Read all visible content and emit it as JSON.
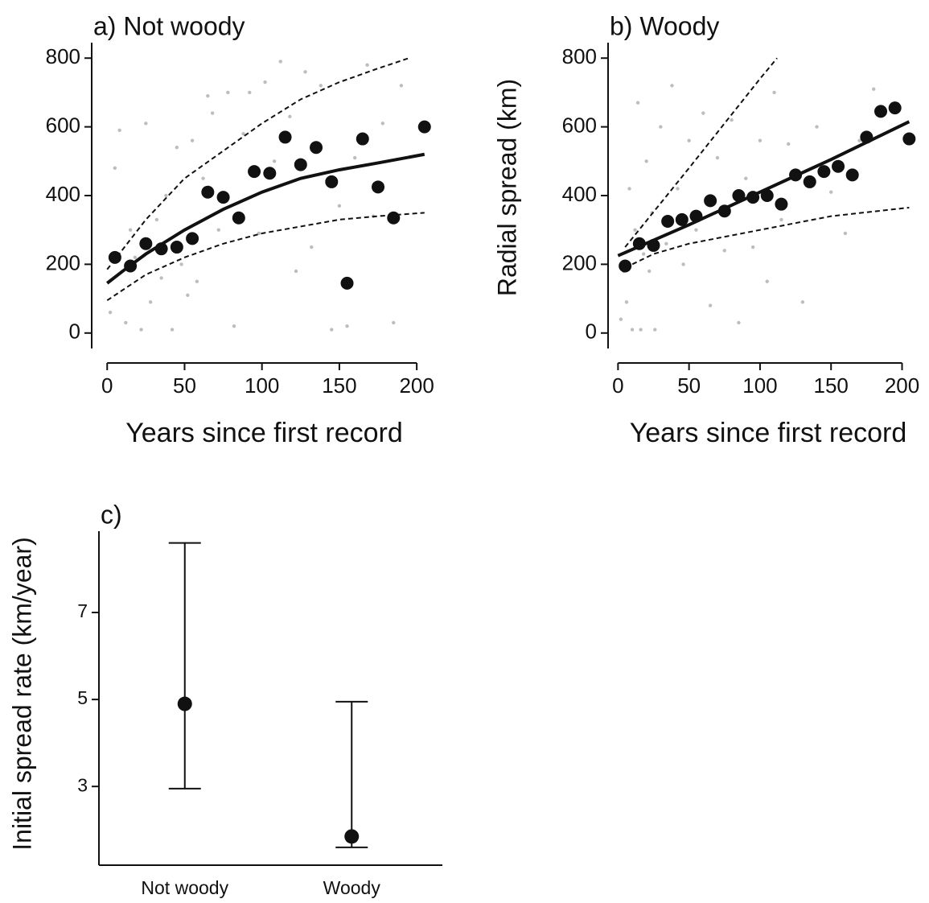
{
  "chart_data": [
    {
      "type": "scatter",
      "title": "a) Not woody",
      "x_label": "Years since first record",
      "xlim": [
        -10,
        215
      ],
      "ylim": [
        -45,
        845
      ],
      "xticks": [
        0,
        50,
        100,
        150,
        200
      ],
      "yticks": [
        0,
        200,
        400,
        600,
        800
      ],
      "series": [
        {
          "style": "points",
          "color": "#bdbdbd",
          "x": [
            2,
            5,
            8,
            12,
            15,
            18,
            22,
            25,
            28,
            32,
            35,
            38,
            42,
            45,
            48,
            52,
            55,
            58,
            62,
            65,
            68,
            72,
            78,
            82,
            88,
            92,
            98,
            102,
            108,
            112,
            118,
            122,
            128,
            132,
            138,
            145,
            150,
            155,
            160,
            168,
            172,
            178,
            185,
            190
          ],
          "values": [
            60,
            480,
            590,
            30,
            300,
            220,
            10,
            610,
            90,
            330,
            160,
            400,
            10,
            540,
            200,
            110,
            560,
            150,
            450,
            690,
            640,
            300,
            700,
            20,
            580,
            700,
            290,
            730,
            500,
            790,
            630,
            180,
            760,
            250,
            720,
            10,
            370,
            20,
            510,
            780,
            340,
            610,
            30,
            720
          ]
        },
        {
          "style": "dashed",
          "color": "#111111",
          "x": [
            0,
            25,
            50,
            75,
            100,
            125,
            150,
            175,
            195
          ],
          "values": [
            185,
            330,
            450,
            530,
            610,
            680,
            730,
            770,
            800
          ]
        },
        {
          "style": "dashed",
          "color": "#111111",
          "x": [
            0,
            25,
            50,
            75,
            100,
            125,
            150,
            175,
            205
          ],
          "values": [
            95,
            170,
            220,
            260,
            290,
            310,
            330,
            340,
            350
          ]
        },
        {
          "style": "solid",
          "color": "#111111",
          "x": [
            0,
            10,
            25,
            50,
            75,
            100,
            125,
            150,
            175,
            205
          ],
          "values": [
            145,
            180,
            230,
            300,
            360,
            410,
            450,
            475,
            495,
            520
          ]
        },
        {
          "style": "dots",
          "color": "#111111",
          "x": [
            5,
            15,
            25,
            35,
            45,
            55,
            65,
            75,
            85,
            95,
            105,
            115,
            125,
            135,
            145,
            155,
            165,
            175,
            185,
            205
          ],
          "values": [
            220,
            195,
            260,
            245,
            250,
            275,
            410,
            395,
            335,
            470,
            465,
            570,
            490,
            540,
            440,
            145,
            565,
            425,
            335,
            600
          ]
        }
      ]
    },
    {
      "type": "scatter",
      "title": "b) Woody",
      "x_label": "Years since first record",
      "y_label": "Radial spread (km)",
      "xlim": [
        -7,
        215
      ],
      "ylim": [
        -45,
        845
      ],
      "xticks": [
        0,
        50,
        100,
        150,
        200
      ],
      "yticks": [
        0,
        200,
        400,
        600,
        800
      ],
      "series": [
        {
          "style": "points",
          "color": "#bdbdbd",
          "x": [
            2,
            4,
            6,
            8,
            10,
            12,
            14,
            16,
            18,
            20,
            22,
            24,
            26,
            30,
            34,
            38,
            42,
            46,
            50,
            55,
            60,
            65,
            70,
            75,
            80,
            85,
            90,
            95,
            100,
            105,
            110,
            115,
            120,
            130,
            140,
            150,
            160,
            170,
            180
          ],
          "values": [
            40,
            180,
            90,
            420,
            10,
            300,
            670,
            10,
            230,
            500,
            180,
            350,
            10,
            600,
            260,
            720,
            420,
            200,
            560,
            300,
            640,
            80,
            510,
            240,
            620,
            30,
            450,
            250,
            560,
            150,
            700,
            330,
            550,
            90,
            600,
            410,
            290,
            560,
            710
          ]
        },
        {
          "style": "dashed",
          "color": "#111111",
          "x": [
            5,
            50,
            100,
            112
          ],
          "values": [
            250,
            480,
            740,
            800
          ]
        },
        {
          "style": "dashed",
          "color": "#111111",
          "x": [
            5,
            25,
            50,
            100,
            150,
            205
          ],
          "values": [
            190,
            230,
            260,
            300,
            340,
            365
          ]
        },
        {
          "style": "solid",
          "color": "#111111",
          "x": [
            0,
            50,
            100,
            150,
            205
          ],
          "values": [
            225,
            315,
            410,
            505,
            615
          ]
        },
        {
          "style": "dots",
          "color": "#111111",
          "x": [
            5,
            15,
            25,
            35,
            45,
            55,
            65,
            75,
            85,
            95,
            105,
            115,
            125,
            135,
            145,
            155,
            165,
            175,
            185,
            195,
            205
          ],
          "values": [
            195,
            260,
            255,
            325,
            330,
            340,
            385,
            355,
            400,
            395,
            400,
            375,
            460,
            440,
            470,
            485,
            460,
            570,
            645,
            655,
            565
          ]
        }
      ]
    },
    {
      "type": "errorbar",
      "title": "c)",
      "y_label": "Initial spread rate (km/year)",
      "categories": [
        "Not woody",
        "Woody"
      ],
      "values": [
        4.9,
        1.85
      ],
      "lower": [
        2.95,
        1.6
      ],
      "upper": [
        8.6,
        4.95
      ],
      "ylim": [
        1.19,
        8.87
      ],
      "yticks": [
        3,
        5,
        7
      ],
      "color": "#111111"
    }
  ]
}
